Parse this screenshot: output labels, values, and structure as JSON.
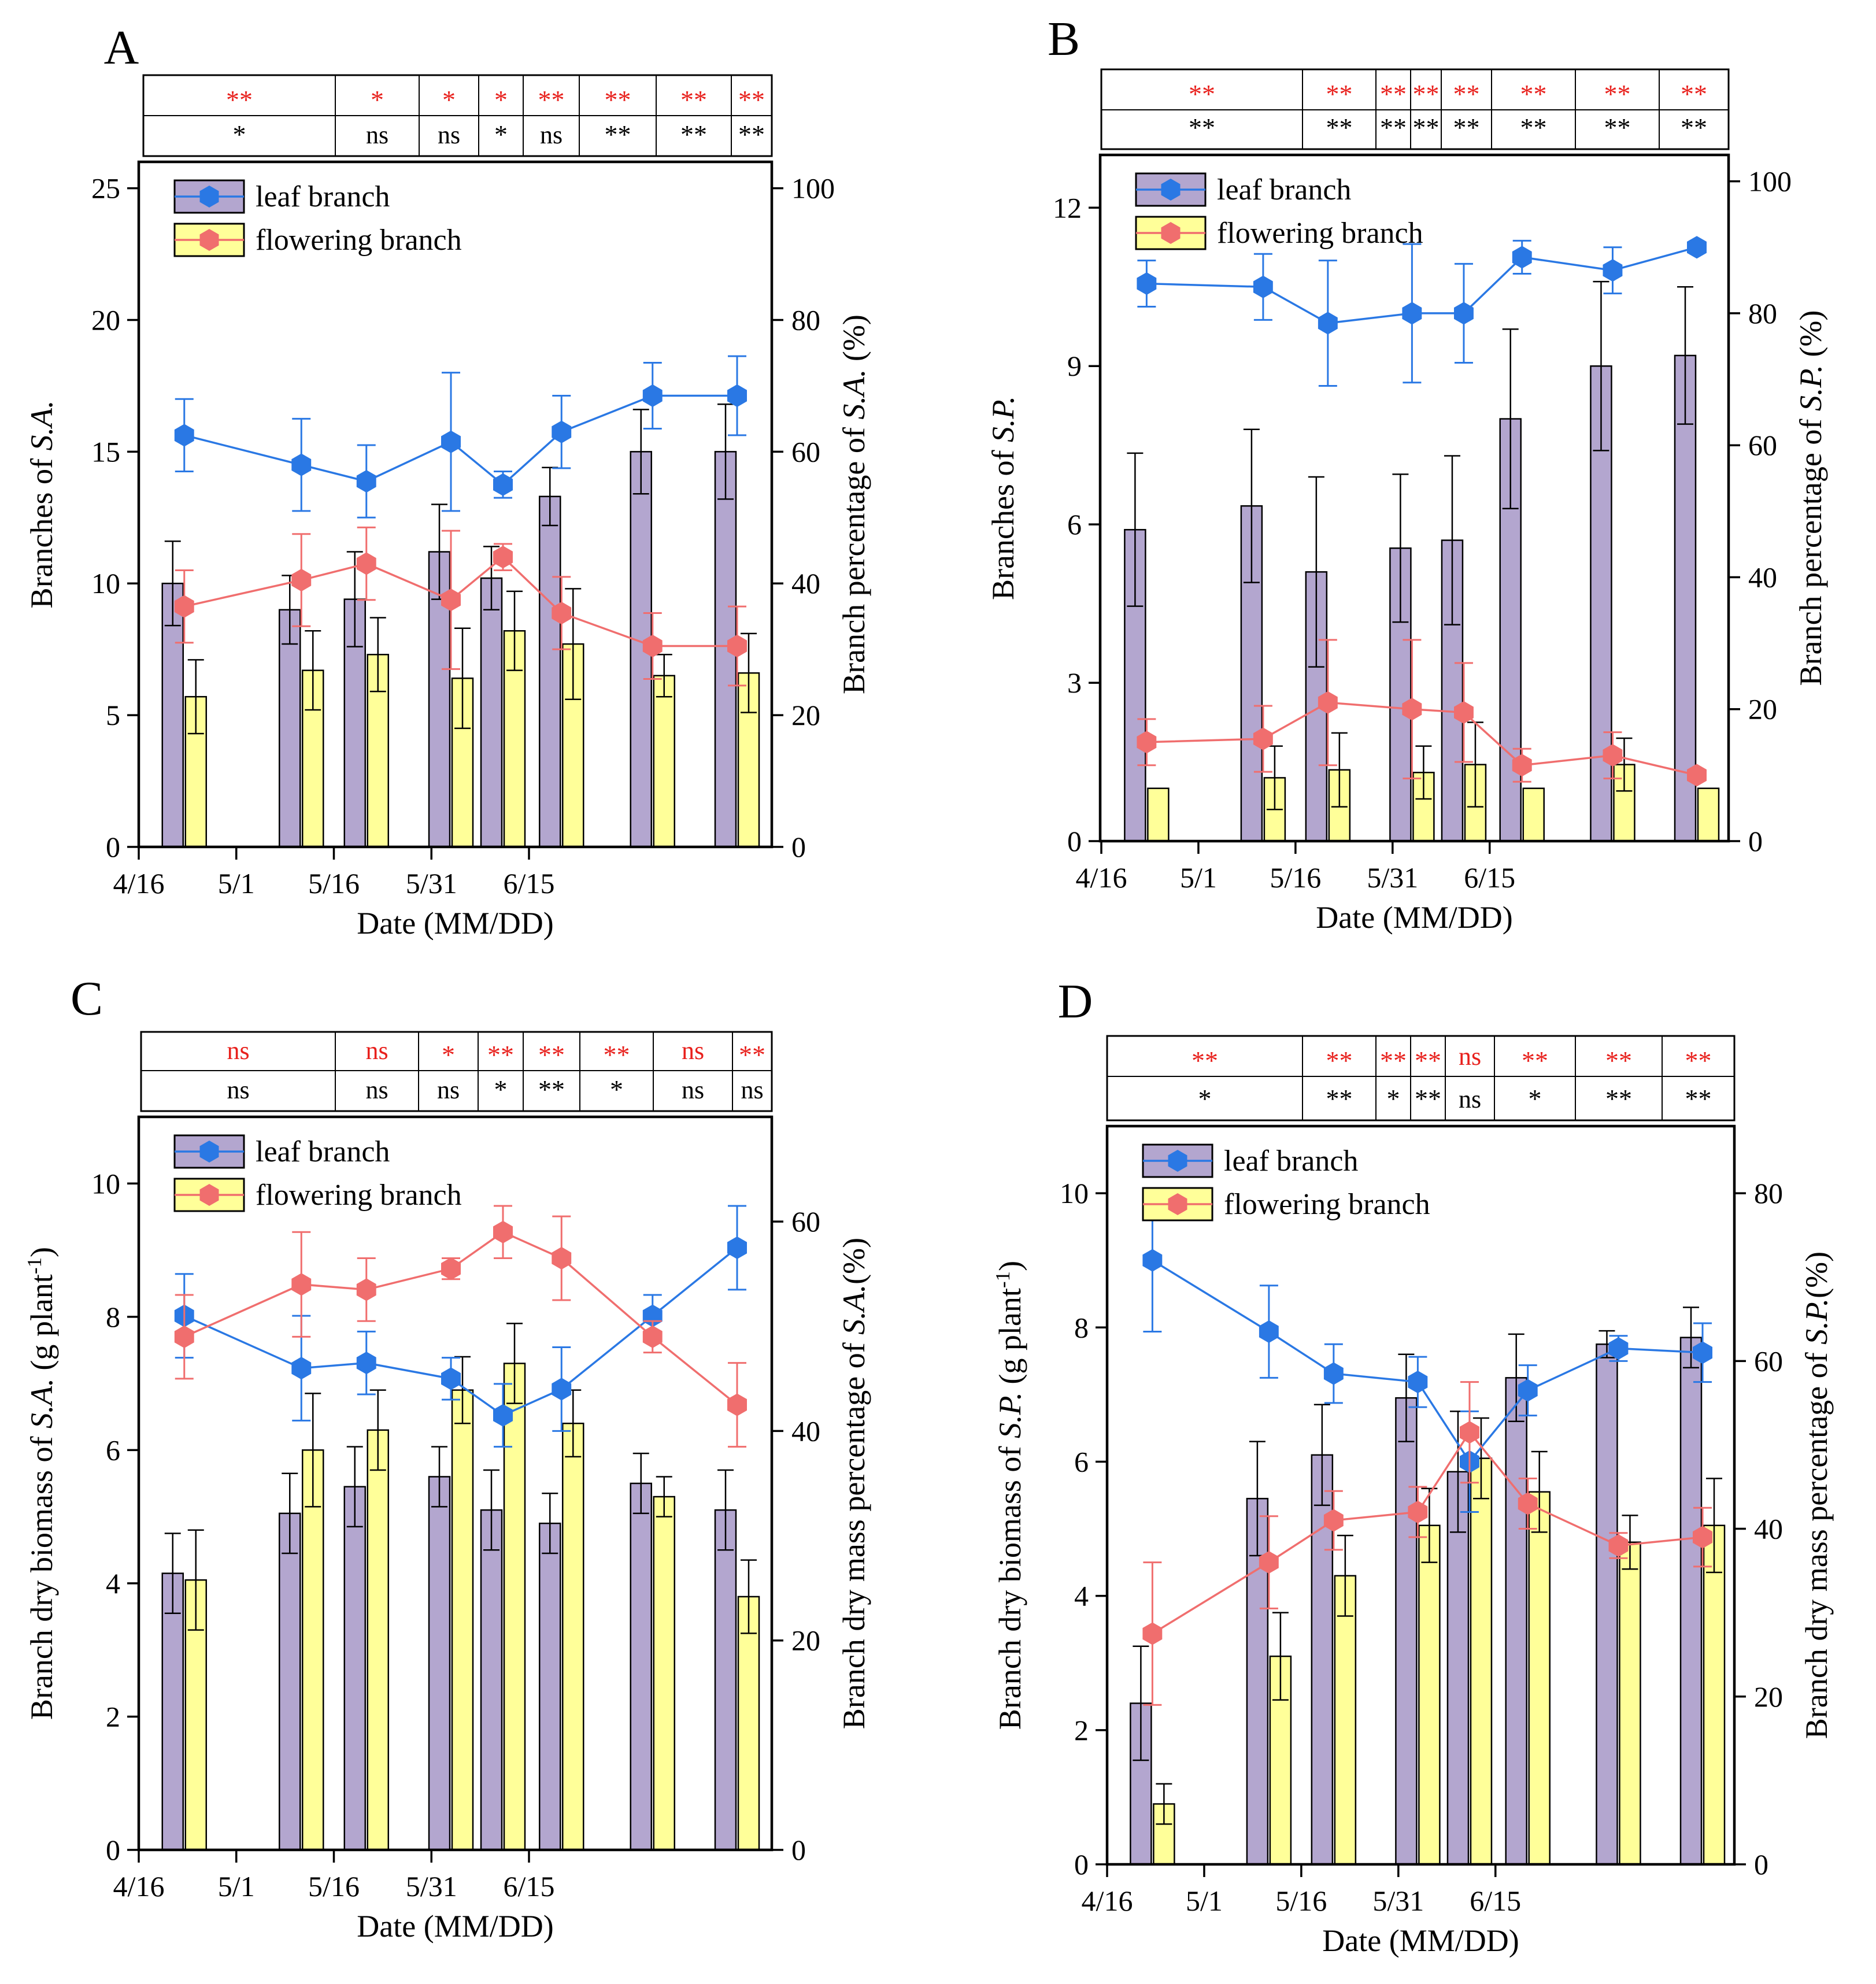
{
  "colors": {
    "leaf_bar": "#b3a6cf",
    "flower_bar": "#ffff99",
    "leaf_line": "#2a78e4",
    "flower_line": "#f06e6e",
    "sig_red": "#e8201c",
    "axis": "#000000"
  },
  "shared": {
    "x_ticks": [
      "4/16",
      "5/1",
      "5/16",
      "5/31",
      "6/15"
    ],
    "xlabel": "Date (MM/DD)",
    "legend": [
      "leaf branch",
      "flowering branch"
    ]
  },
  "chart_data": [
    {
      "panel": "A",
      "type": "bar+line",
      "title": "A",
      "xlabel": "Date (MM/DD)",
      "ylabel": "Branches of S.A.",
      "y2label": "Branch percentage of S.A. (%)",
      "x_ticks": [
        "4/16",
        "5/1",
        "5/16",
        "5/31",
        "6/15"
      ],
      "x_days": [
        7,
        25,
        35,
        48,
        56,
        65,
        79,
        92
      ],
      "ylim": [
        0,
        26
      ],
      "y_ticks": [
        0,
        5,
        10,
        15,
        20,
        25
      ],
      "y2lim": [
        0,
        104
      ],
      "y2_ticks": [
        0,
        20,
        40,
        60,
        80,
        100
      ],
      "sig_top": [
        "**",
        "*",
        "*",
        "*",
        "**",
        "**",
        "**",
        "**"
      ],
      "sig_bottom": [
        "*",
        "ns",
        "ns",
        "*",
        "ns",
        "**",
        "**",
        "**"
      ],
      "series": [
        {
          "name": "leaf branch",
          "kind": "bar",
          "values": [
            10.0,
            9.0,
            9.4,
            11.2,
            10.2,
            13.3,
            15.0,
            15.0
          ],
          "errors": [
            1.6,
            1.3,
            1.8,
            1.8,
            1.2,
            1.1,
            1.6,
            1.8
          ]
        },
        {
          "name": "flowering branch",
          "kind": "bar",
          "values": [
            5.7,
            6.7,
            7.3,
            6.4,
            8.2,
            7.7,
            6.5,
            6.6
          ],
          "errors": [
            1.4,
            1.5,
            1.4,
            1.9,
            1.5,
            2.1,
            0.8,
            1.5
          ]
        },
        {
          "name": "leaf branch %",
          "kind": "line",
          "axis": "y2",
          "values": [
            62.5,
            58.0,
            55.5,
            61.5,
            55.0,
            63.0,
            68.5,
            68.5
          ],
          "errors": [
            5.5,
            7.0,
            5.5,
            10.5,
            2.0,
            5.5,
            5.0,
            6.0
          ]
        },
        {
          "name": "flowering branch %",
          "kind": "line",
          "axis": "y2",
          "values": [
            36.5,
            40.5,
            43.0,
            37.5,
            44.0,
            35.5,
            30.5,
            30.5
          ],
          "errors": [
            5.5,
            7.0,
            5.5,
            10.5,
            2.0,
            5.5,
            5.0,
            6.0
          ]
        }
      ]
    },
    {
      "panel": "B",
      "type": "bar+line",
      "title": "B",
      "xlabel": "Date (MM/DD)",
      "ylabel": "Branches of S.P.",
      "y2label": "Branch percentage of S.P. (%)",
      "x_ticks": [
        "4/16",
        "5/1",
        "5/16",
        "5/31",
        "6/15"
      ],
      "x_days": [
        7,
        25,
        35,
        48,
        56,
        65,
        79,
        92
      ],
      "ylim": [
        0,
        13
      ],
      "y_ticks": [
        0,
        3,
        6,
        9,
        12
      ],
      "y2lim": [
        0,
        104
      ],
      "y2_ticks": [
        0,
        20,
        40,
        60,
        80,
        100
      ],
      "sig_top": [
        "**",
        "**",
        "**",
        "**",
        "**",
        "**",
        "**",
        "**"
      ],
      "sig_bottom": [
        "**",
        "**",
        "**",
        "**",
        "**",
        "**",
        "**",
        "**"
      ],
      "series": [
        {
          "name": "leaf branch",
          "kind": "bar",
          "values": [
            5.9,
            6.35,
            5.1,
            5.55,
            5.7,
            8.0,
            9.0,
            9.2
          ],
          "errors": [
            1.45,
            1.45,
            1.8,
            1.4,
            1.6,
            1.7,
            1.6,
            1.3
          ]
        },
        {
          "name": "flowering branch",
          "kind": "bar",
          "values": [
            1.0,
            1.2,
            1.35,
            1.3,
            1.45,
            1.0,
            1.45,
            1.0
          ],
          "errors": [
            0,
            0.6,
            0.7,
            0.5,
            0.8,
            0,
            0.5,
            0
          ]
        },
        {
          "name": "leaf branch %",
          "kind": "line",
          "axis": "y2",
          "values": [
            84.5,
            84.0,
            78.5,
            80.0,
            80.0,
            88.5,
            86.5,
            90.0
          ],
          "errors": [
            3.5,
            5.0,
            9.5,
            10.5,
            7.5,
            2.5,
            3.5,
            0
          ]
        },
        {
          "name": "flowering branch %",
          "kind": "line",
          "axis": "y2",
          "values": [
            15.0,
            15.5,
            21.0,
            20.0,
            19.5,
            11.5,
            13.0,
            10.0
          ],
          "errors": [
            3.5,
            5.0,
            9.5,
            10.5,
            7.5,
            2.5,
            3.5,
            0
          ]
        }
      ]
    },
    {
      "panel": "C",
      "type": "bar+line",
      "title": "C",
      "xlabel": "Date (MM/DD)",
      "ylabel": "Branch dry biomass of S.A. (g plant-1)",
      "y2label": "Branch dry mass percentage of S.A.(%)",
      "x_ticks": [
        "4/16",
        "5/1",
        "5/16",
        "5/31",
        "6/15"
      ],
      "x_days": [
        7,
        25,
        35,
        48,
        56,
        65,
        79,
        92
      ],
      "ylim": [
        0,
        11
      ],
      "y_ticks": [
        0,
        2,
        4,
        6,
        8,
        10
      ],
      "y2lim": [
        0,
        70
      ],
      "y2_ticks": [
        0,
        20,
        40,
        60
      ],
      "sig_top": [
        "ns",
        "ns",
        "*",
        "**",
        "**",
        "**",
        "ns",
        "**"
      ],
      "sig_bottom": [
        "ns",
        "ns",
        "ns",
        "*",
        "**",
        "*",
        "ns",
        "ns"
      ],
      "series": [
        {
          "name": "leaf branch",
          "kind": "bar",
          "values": [
            4.15,
            5.05,
            5.45,
            5.6,
            5.1,
            4.9,
            5.5,
            5.1
          ],
          "errors": [
            0.6,
            0.6,
            0.6,
            0.45,
            0.6,
            0.45,
            0.45,
            0.6
          ]
        },
        {
          "name": "flowering branch",
          "kind": "bar",
          "values": [
            4.05,
            6.0,
            6.3,
            6.9,
            7.3,
            6.4,
            5.3,
            3.8
          ],
          "errors": [
            0.75,
            0.85,
            0.6,
            0.5,
            0.6,
            0.5,
            0.3,
            0.55
          ]
        },
        {
          "name": "leaf branch %",
          "kind": "line",
          "axis": "y2",
          "values": [
            51.0,
            46.0,
            46.5,
            45.0,
            41.5,
            44.0,
            51.0,
            57.5
          ],
          "errors": [
            4.0,
            5.0,
            3.0,
            2.0,
            3.0,
            4.0,
            2.0,
            4.0
          ]
        },
        {
          "name": "flowering branch %",
          "kind": "line",
          "axis": "y2",
          "values": [
            49.0,
            54.0,
            53.5,
            55.5,
            59.0,
            56.5,
            49.0,
            42.5
          ],
          "errors": [
            4.0,
            5.0,
            3.0,
            1.0,
            2.5,
            4.0,
            1.5,
            4.0
          ]
        }
      ]
    },
    {
      "panel": "D",
      "type": "bar+line",
      "title": "D",
      "xlabel": "Date (MM/DD)",
      "ylabel": "Branch dry biomass of S.P. (g plant-1)",
      "y2label": "Branch dry mass percentage of S.P.(%)",
      "x_ticks": [
        "4/16",
        "5/1",
        "5/16",
        "5/31",
        "6/15"
      ],
      "x_days": [
        7,
        25,
        35,
        48,
        56,
        65,
        79,
        92
      ],
      "ylim": [
        0,
        11
      ],
      "y_ticks": [
        0,
        2,
        4,
        6,
        8,
        10
      ],
      "y2lim": [
        0,
        88
      ],
      "y2_ticks": [
        0,
        20,
        40,
        60,
        80
      ],
      "sig_top": [
        "**",
        "**",
        "**",
        "**",
        "ns",
        "**",
        "**",
        "**"
      ],
      "sig_bottom": [
        "*",
        "**",
        "*",
        "**",
        "ns",
        "*",
        "**",
        "**"
      ],
      "series": [
        {
          "name": "leaf branch",
          "kind": "bar",
          "values": [
            2.4,
            5.45,
            6.1,
            6.95,
            5.85,
            7.25,
            7.75,
            7.85
          ],
          "errors": [
            0.85,
            0.85,
            0.75,
            0.65,
            0.9,
            0.65,
            0.2,
            0.45
          ]
        },
        {
          "name": "flowering branch",
          "kind": "bar",
          "values": [
            0.9,
            3.1,
            4.3,
            5.05,
            6.05,
            5.55,
            4.8,
            5.05
          ],
          "errors": [
            0.3,
            0.65,
            0.6,
            0.55,
            0.6,
            0.6,
            0.4,
            0.7
          ]
        },
        {
          "name": "leaf branch %",
          "kind": "line",
          "axis": "y2",
          "values": [
            72.0,
            63.5,
            58.5,
            57.5,
            48.0,
            56.5,
            61.5,
            61.0
          ],
          "errors": [
            8.5,
            5.5,
            3.5,
            3.0,
            6.0,
            3.0,
            1.5,
            3.5
          ]
        },
        {
          "name": "flowering branch %",
          "kind": "line",
          "axis": "y2",
          "values": [
            27.5,
            36.0,
            41.0,
            42.0,
            51.5,
            43.0,
            38.0,
            39.0
          ],
          "errors": [
            8.5,
            5.5,
            3.5,
            3.0,
            6.0,
            3.0,
            1.5,
            3.5
          ]
        }
      ]
    }
  ]
}
